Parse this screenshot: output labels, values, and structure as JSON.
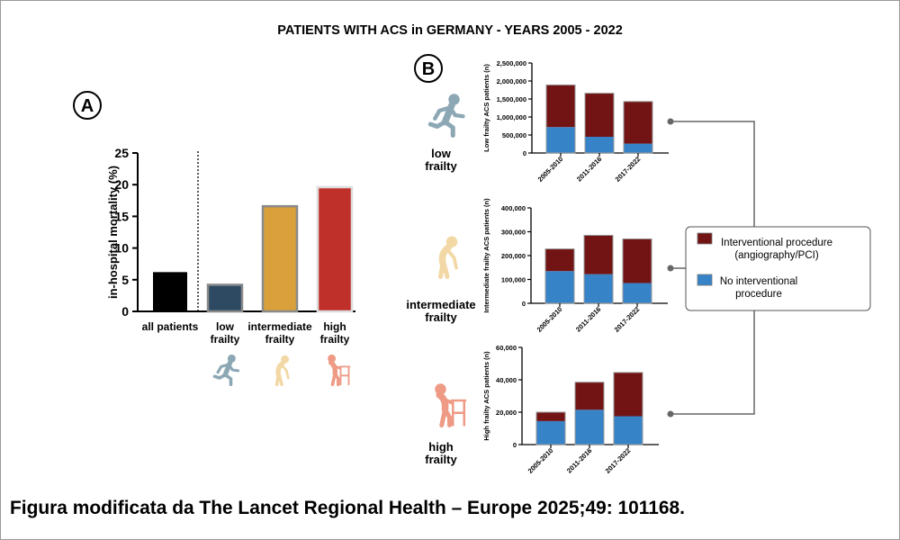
{
  "title": "PATIENTS WITH ACS in GERMANY - YEARS 2005 - 2022",
  "caption": "Figura modificata da The Lancet Regional Health – Europe 2025;49: 101168.",
  "colors": {
    "all": "#000000",
    "low": "#2e4a63",
    "intermediate": "#d9a03c",
    "high": "#c0302a",
    "interventional": "#731414",
    "no_interventional": "#3683c8",
    "icon_low": "#8da8b5",
    "icon_intermediate": "#f2d8a4",
    "icon_high": "#ee9a85"
  },
  "panel_a": {
    "label": "A",
    "icons": [
      "running-person-icon",
      "stooped-person-icon",
      "walker-person-icon"
    ],
    "chart_data": {
      "type": "bar",
      "title": "",
      "xlabel": "",
      "ylabel": "in-hospital mortality (%)",
      "ylim": [
        0,
        25
      ],
      "yticks": [
        "0",
        "5",
        "10",
        "15",
        "20",
        "25"
      ],
      "categories": [
        [
          "all patients"
        ],
        [
          "low",
          "frailty"
        ],
        [
          "intermediate",
          "frailty"
        ],
        [
          "high",
          "frailty"
        ]
      ],
      "values": [
        6.2,
        4.2,
        16.6,
        19.6
      ]
    }
  },
  "panel_b": {
    "label": "B",
    "legend": {
      "interventional": [
        "Interventional procedure",
        "(angiography/PCI)"
      ],
      "no_interventional": [
        "No interventional",
        "procedure"
      ]
    },
    "groups": [
      {
        "label": [
          "low",
          "frailty"
        ],
        "icon": "running-person-icon",
        "chart_data": {
          "type": "bar",
          "stacked": true,
          "ylabel": "Low frailty ACS patients (n)",
          "ylim": [
            0,
            2500000
          ],
          "yticks": [
            "0",
            "500,000",
            "1,000,000",
            "1,500,000",
            "2,000,000",
            "2,500,000"
          ],
          "categories": [
            "2005-2010",
            "2011-2016",
            "2017-2022"
          ],
          "series": [
            {
              "name": "No interventional procedure",
              "values": [
                720000,
                450000,
                260000
              ]
            },
            {
              "name": "Interventional procedure (angiography/PCI)",
              "values": [
                1170000,
                1210000,
                1170000
              ]
            }
          ]
        }
      },
      {
        "label": [
          "intermediate",
          "frailty"
        ],
        "icon": "stooped-person-icon",
        "chart_data": {
          "type": "bar",
          "stacked": true,
          "ylabel": "Intermediate frailty ACS patients (n)",
          "ylim": [
            0,
            400000
          ],
          "yticks": [
            "0",
            "100,000",
            "200,000",
            "300,000",
            "400,000"
          ],
          "categories": [
            "2005-2010",
            "2011-2016",
            "2017-2022"
          ],
          "series": [
            {
              "name": "No interventional procedure",
              "values": [
                135000,
                122000,
                85000
              ]
            },
            {
              "name": "Interventional procedure (angiography/PCI)",
              "values": [
                93000,
                163000,
                185000
              ]
            }
          ]
        }
      },
      {
        "label": [
          "high",
          "frailty"
        ],
        "icon": "walker-person-icon",
        "chart_data": {
          "type": "bar",
          "stacked": true,
          "ylabel": "High frailty ACS patients (n)",
          "ylim": [
            0,
            60000
          ],
          "yticks": [
            "0",
            "20,000",
            "40,000",
            "60,000"
          ],
          "categories": [
            "2005-2010",
            "2011-2016",
            "2017-2022"
          ],
          "series": [
            {
              "name": "No interventional procedure",
              "values": [
                14500,
                21500,
                17500
              ]
            },
            {
              "name": "Interventional procedure (angiography/PCI)",
              "values": [
                5500,
                17000,
                27000
              ]
            }
          ]
        }
      }
    ]
  }
}
